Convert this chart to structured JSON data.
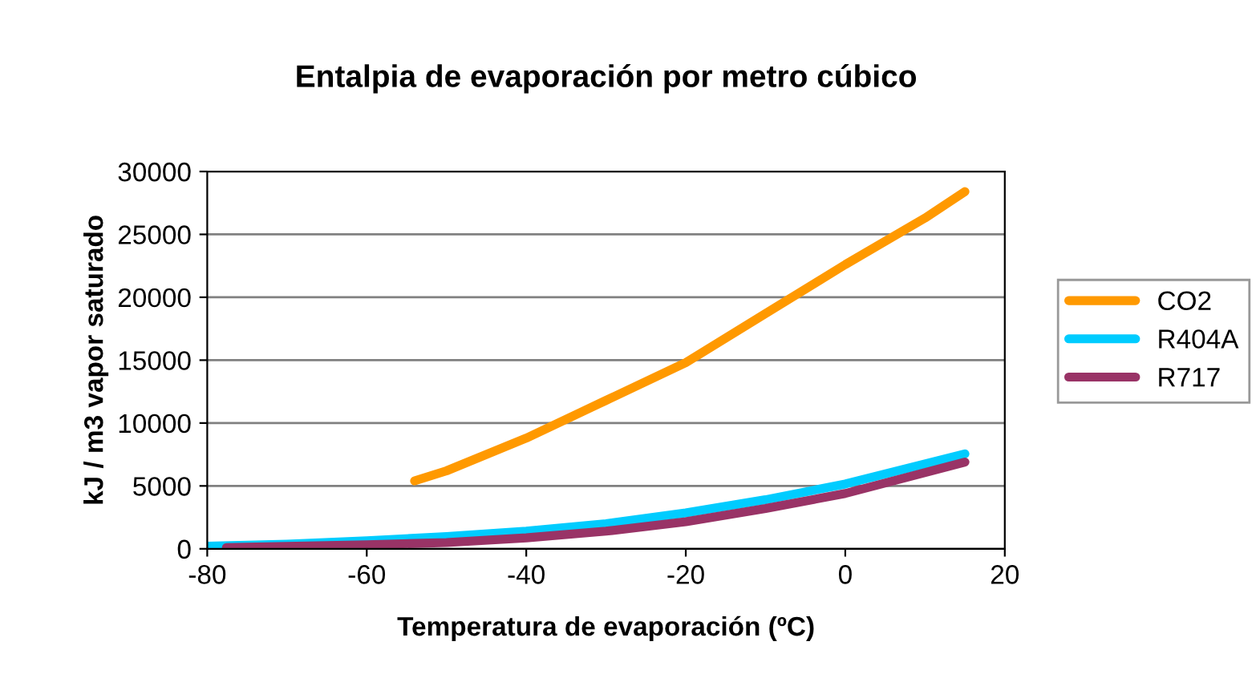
{
  "chart_data": {
    "type": "line",
    "title": "Entalpia de evaporación por metro cúbico",
    "xlabel": "Temperatura de evaporación (ºC)",
    "ylabel": "kJ / m3 vapor saturado",
    "xlim": [
      -80,
      20
    ],
    "xticks": [
      -80,
      -60,
      -40,
      -20,
      0,
      20
    ],
    "ylim": [
      0,
      30000
    ],
    "yticks": [
      0,
      5000,
      10000,
      15000,
      20000,
      25000,
      30000
    ],
    "grid": "y",
    "legend": "right",
    "marker": "none",
    "line_style": "solid",
    "series": [
      {
        "name": "CO2",
        "color": "#ff9900",
        "x": [
          -54,
          -50,
          -40,
          -30,
          -20,
          -10,
          0,
          10,
          15
        ],
        "values": [
          5400,
          6200,
          8800,
          11800,
          14800,
          18700,
          22600,
          26300,
          28400
        ]
      },
      {
        "name": "R404A",
        "color": "#00ccff",
        "x": [
          -80,
          -70,
          -60,
          -50,
          -40,
          -30,
          -20,
          -10,
          0,
          15
        ],
        "values": [
          200,
          370,
          640,
          970,
          1400,
          2000,
          2850,
          3900,
          5150,
          7550
        ]
      },
      {
        "name": "R717",
        "color": "#993366",
        "x": [
          -77.6,
          -60,
          -50,
          -40,
          -30,
          -20,
          -10,
          0,
          15
        ],
        "values": [
          100,
          320,
          500,
          870,
          1400,
          2150,
          3200,
          4400,
          6900
        ]
      }
    ]
  }
}
